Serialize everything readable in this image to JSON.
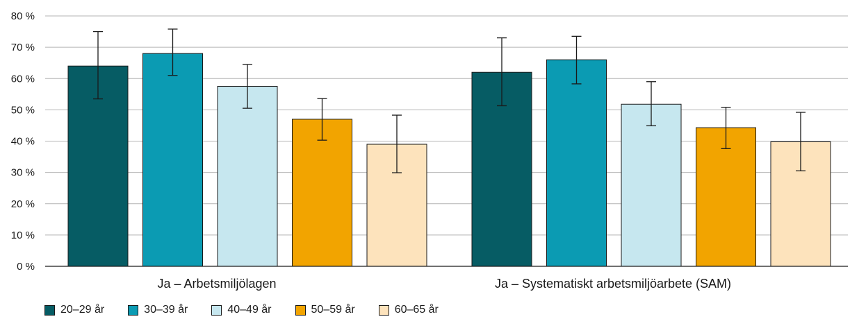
{
  "chart_data": {
    "type": "bar",
    "categories": [
      "Ja – Arbetsmiljölagen",
      "Ja – Systematiskt arbetsmiljöarbete (SAM)"
    ],
    "series": [
      {
        "name": "20–29 år",
        "color": "#065c64",
        "values": [
          64,
          62
        ],
        "error_low": [
          53.5,
          51.3
        ],
        "error_high": [
          75,
          73
        ]
      },
      {
        "name": "30–39 år",
        "color": "#0b9bb3",
        "values": [
          68,
          66
        ],
        "error_low": [
          61,
          58.3
        ],
        "error_high": [
          75.8,
          73.5
        ]
      },
      {
        "name": "40–49 år",
        "color": "#c6e7ef",
        "values": [
          57.5,
          51.8
        ],
        "error_low": [
          50.5,
          44.9
        ],
        "error_high": [
          64.5,
          59
        ]
      },
      {
        "name": "50–59 år",
        "color": "#f2a400",
        "values": [
          47,
          44.3
        ],
        "error_low": [
          40.3,
          37.6
        ],
        "error_high": [
          53.6,
          50.8
        ]
      },
      {
        "name": "60–65 år",
        "color": "#fde3bc",
        "values": [
          39,
          39.8
        ],
        "error_low": [
          29.9,
          30.5
        ],
        "error_high": [
          48.3,
          49.2
        ]
      }
    ],
    "ylim": [
      0,
      80
    ],
    "yticks": [
      "0 %",
      "10 %",
      "20 %",
      "30 %",
      "40 %",
      "50 %",
      "60 %",
      "70 %",
      "80 %"
    ],
    "ytick_values": [
      0,
      10,
      20,
      30,
      40,
      50,
      60,
      70,
      80
    ],
    "grid": true,
    "legend_position": "bottom-left",
    "xlabel": "",
    "ylabel": "",
    "title": ""
  }
}
